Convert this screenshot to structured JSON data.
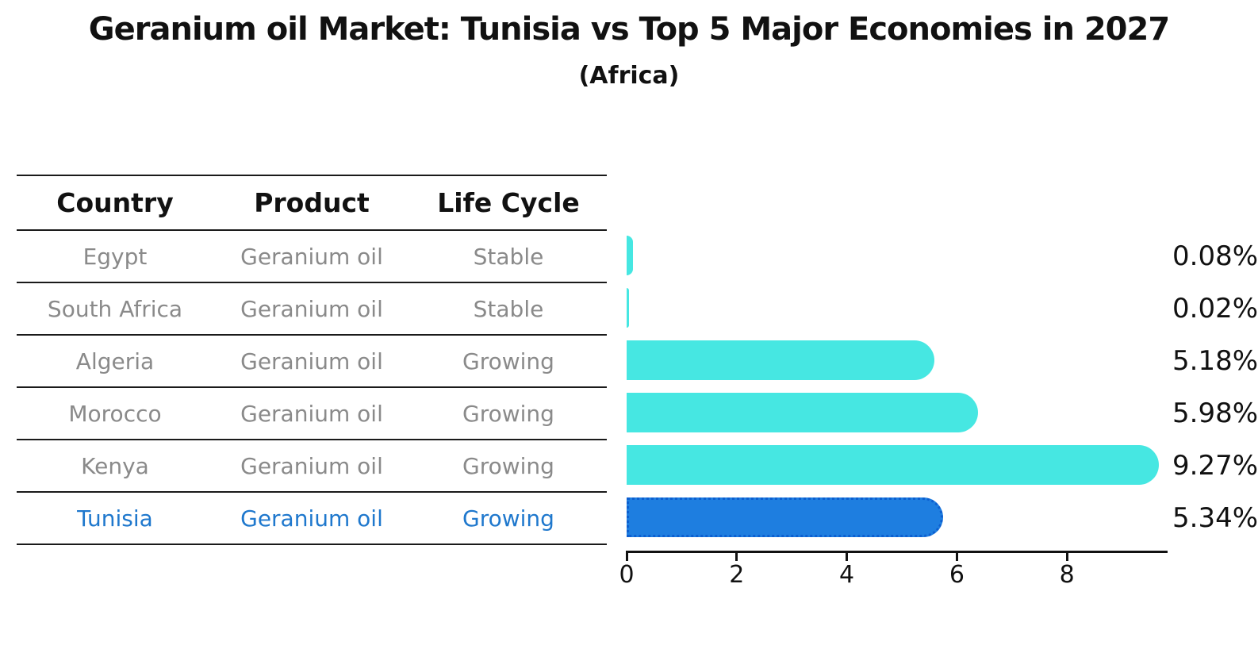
{
  "title": "Geranium oil Market: Tunisia vs Top 5 Major Economies in 2027",
  "subtitle": "(Africa)",
  "table": {
    "headers": [
      "Country",
      "Product",
      "Life Cycle"
    ],
    "rows": [
      {
        "country": "Egypt",
        "product": "Geranium oil",
        "life_cycle": "Stable",
        "highlighted": false
      },
      {
        "country": "South Africa",
        "product": "Geranium oil",
        "life_cycle": "Stable",
        "highlighted": false
      },
      {
        "country": "Algeria",
        "product": "Geranium oil",
        "life_cycle": "Growing",
        "highlighted": false
      },
      {
        "country": "Morocco",
        "product": "Geranium oil",
        "life_cycle": "Growing",
        "highlighted": false
      },
      {
        "country": "Kenya",
        "product": "Geranium oil",
        "life_cycle": "Growing",
        "highlighted": false
      },
      {
        "country": "Tunisia",
        "product": "Geranium oil",
        "life_cycle": "Growing",
        "highlighted": true
      }
    ]
  },
  "chart_data": {
    "type": "bar",
    "orientation": "horizontal",
    "title": "Geranium oil Market: Tunisia vs Top 5 Major Economies in 2027 (Africa)",
    "categories": [
      "Egypt",
      "South Africa",
      "Algeria",
      "Morocco",
      "Kenya",
      "Tunisia"
    ],
    "values": [
      0.08,
      0.02,
      5.18,
      5.98,
      9.27,
      5.34
    ],
    "value_labels": [
      "0.08%",
      "0.02%",
      "5.18%",
      "5.98%",
      "9.27%",
      "5.34%"
    ],
    "unit": "percent",
    "x_ticks": [
      0,
      2,
      4,
      6,
      8
    ],
    "xlim": [
      0,
      9.8
    ],
    "grid": false,
    "legend": "none",
    "bar_color": "#46E7E2",
    "highlight_index": 5,
    "highlight_color": "#1E7EE0",
    "highlight_border_color": "#0D5FD0"
  }
}
